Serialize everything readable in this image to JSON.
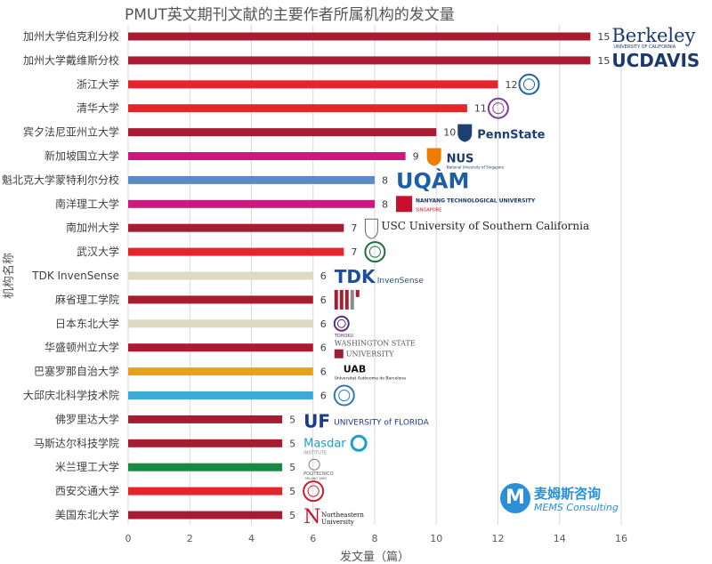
{
  "chart_data": {
    "type": "bar",
    "orientation": "horizontal",
    "title": "PMUT英文期刊文献的主要作者所属机构的发文量",
    "xlabel": "发文量（篇）",
    "ylabel": "机构名称",
    "xlim": [
      0,
      16
    ],
    "xticks": [
      "0",
      "2",
      "4",
      "6",
      "8",
      "10",
      "12",
      "14",
      "16"
    ],
    "grid": true,
    "categories": [
      "加州大学伯克利分校",
      "加州大学戴维斯分校",
      "浙江大学",
      "清华大学",
      "宾夕法尼亚州立大学",
      "新加坡国立大学",
      "魁北克大学蒙特利尔分校",
      "南洋理工大学",
      "南加州大学",
      "武汉大学",
      "TDK InvenSense",
      "麻省理工学院",
      "日本东北大学",
      "华盛顿州立大学",
      "巴塞罗那自治大学",
      "大邱庆北科学技术院",
      "佛罗里达大学",
      "马斯达尔科技学院",
      "米兰理工大学",
      "西安交通大学",
      "美国东北大学"
    ],
    "values": [
      15,
      15,
      12,
      11,
      10,
      9,
      8,
      8,
      7,
      7,
      6,
      6,
      6,
      6,
      6,
      6,
      5,
      5,
      5,
      5,
      5
    ],
    "bar_colors": [
      "#a81c32",
      "#a81c32",
      "#e8232c",
      "#e8232c",
      "#a81c32",
      "#d4157f",
      "#5b8bc6",
      "#d4157f",
      "#a81c32",
      "#e8232c",
      "#ddd9c3",
      "#a81c32",
      "#ddd9c3",
      "#a81c32",
      "#e3a418",
      "#3ca9d6",
      "#a81c32",
      "#a81c32",
      "#178a43",
      "#e8232c",
      "#a81c32"
    ],
    "logos": [
      {
        "text": "Berkeley",
        "sub": "UNIVERSITY OF CALIFORNIA",
        "color": "#1b3a6b",
        "font": "serif"
      },
      {
        "text": "UCDAVIS",
        "sub": "",
        "color": "#1b3a6b",
        "font": "sans-bold"
      },
      {
        "text": "",
        "sub": "",
        "color": "#1f5fa8",
        "font": "seal"
      },
      {
        "text": "",
        "sub": "",
        "color": "#7a3e9a",
        "font": "seal"
      },
      {
        "text": "PennState",
        "sub": "",
        "color": "#1e3f74",
        "font": "sans-bold",
        "icon": "#1e3f74"
      },
      {
        "text": "NUS",
        "sub": "National University of Singapore",
        "color": "#1b3a6b",
        "font": "sans-bold",
        "icon": "#ef7c00"
      },
      {
        "text": "UQÀM",
        "sub": "",
        "color": "#1c5ea8",
        "font": "sans-bold-large"
      },
      {
        "text": "NANYANG TECHNOLOGICAL UNIVERSITY",
        "sub": "SINGAPORE",
        "color": "#1b3a6b",
        "font": "ntu",
        "icon": "#c8102e"
      },
      {
        "text": "USC University of Southern California",
        "sub": "",
        "color": "#222222",
        "font": "usc",
        "icon": "#990000"
      },
      {
        "text": "",
        "sub": "",
        "color": "#1f6f3f",
        "font": "seal"
      },
      {
        "text": "TDK",
        "sub": "InvenSense",
        "color": "#1b4f9c",
        "font": "tdk"
      },
      {
        "text": "MIT",
        "sub": "",
        "color": "#a31f34",
        "font": "mit"
      },
      {
        "text": "TOHOKU",
        "sub": "",
        "color": "#5a2d82",
        "font": "seal-small"
      },
      {
        "text": "WASHINGTON STATE",
        "sub": "UNIVERSITY",
        "color": "#981e32",
        "font": "wsu"
      },
      {
        "text": "UAB",
        "sub": "Universitat Autònoma de Barcelona",
        "color": "#111111",
        "font": "uab"
      },
      {
        "text": "",
        "sub": "",
        "color": "#2a78b8",
        "font": "seal"
      },
      {
        "text": "UF",
        "sub": "UNIVERSITY of FLORIDA",
        "color": "#1c3a8f",
        "font": "uf"
      },
      {
        "text": "Masdar",
        "sub": "INSTITUTE",
        "color": "#1aa0c8",
        "font": "masdar"
      },
      {
        "text": "POLITECNICO",
        "sub": "MILANO 1863",
        "color": "#555555",
        "font": "polimi"
      },
      {
        "text": "",
        "sub": "",
        "color": "#c41e2a",
        "font": "seal"
      },
      {
        "text": "Northeastern",
        "sub": "University",
        "color": "#111111",
        "font": "neu",
        "icon": "#c8102e"
      }
    ]
  },
  "watermark": {
    "glyph": "M",
    "name_cn": "麦姆斯咨询",
    "name_en": "MEMS Consulting"
  }
}
